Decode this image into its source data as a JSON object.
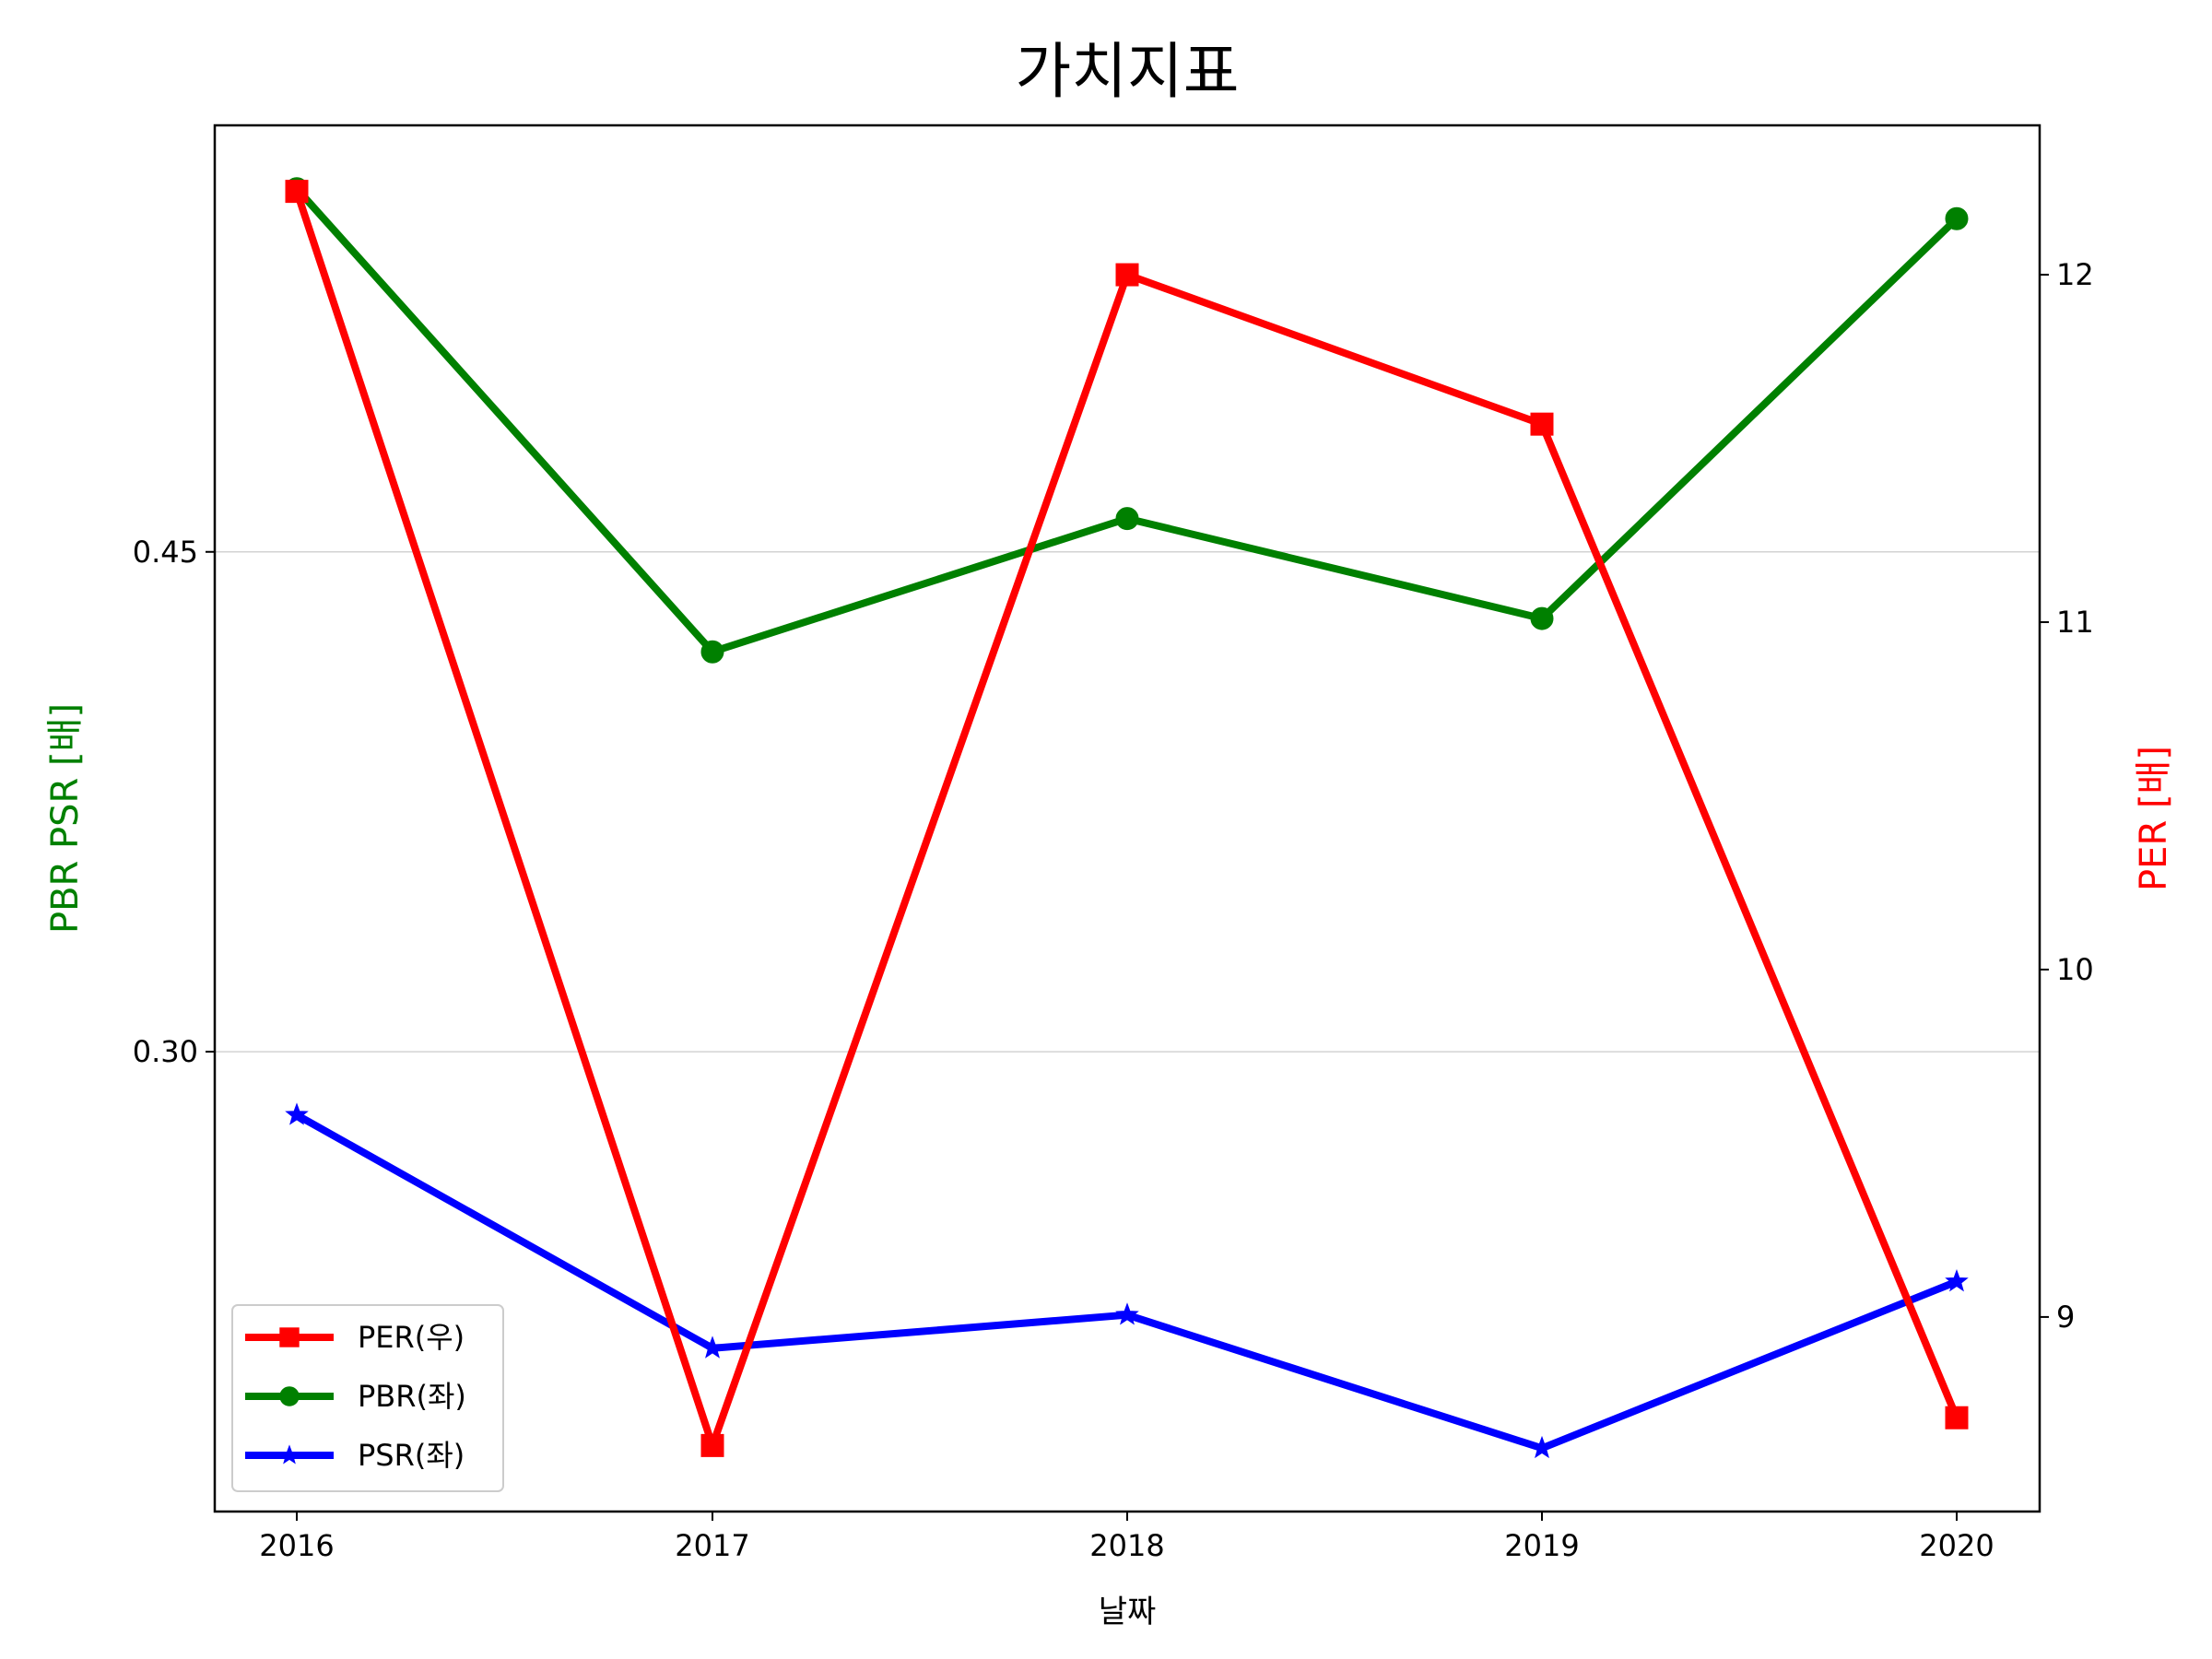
{
  "chart_data": {
    "type": "line",
    "title": "가치지표",
    "xlabel": "날짜",
    "ylabel_left": "PBR PSR [배]",
    "ylabel_right": "PER [배]",
    "categories": [
      "2016",
      "2017",
      "2018",
      "2019",
      "2020"
    ],
    "left_axis": {
      "ylim": [
        0.162,
        0.578
      ],
      "ticks": [
        0.3,
        0.45
      ],
      "tick_labels": [
        "0.30",
        "0.45"
      ],
      "grid": true
    },
    "right_axis": {
      "ylim": [
        8.44,
        12.43
      ],
      "ticks": [
        9,
        10,
        11,
        12
      ],
      "tick_labels": [
        "9",
        "10",
        "11",
        "12"
      ]
    },
    "series": [
      {
        "name": "PER(우)",
        "axis": "right",
        "color": "#ff0000",
        "marker": "square",
        "values": [
          12.24,
          8.63,
          12.0,
          11.57,
          8.71
        ]
      },
      {
        "name": "PBR(좌)",
        "axis": "left",
        "color": "#008000",
        "marker": "circle",
        "values": [
          0.559,
          0.42,
          0.46,
          0.43,
          0.55
        ]
      },
      {
        "name": "PSR(좌)",
        "axis": "left",
        "color": "#0000ff",
        "marker": "star",
        "values": [
          0.281,
          0.211,
          0.221,
          0.181,
          0.231
        ]
      }
    ],
    "legend_position": "lower-left"
  }
}
